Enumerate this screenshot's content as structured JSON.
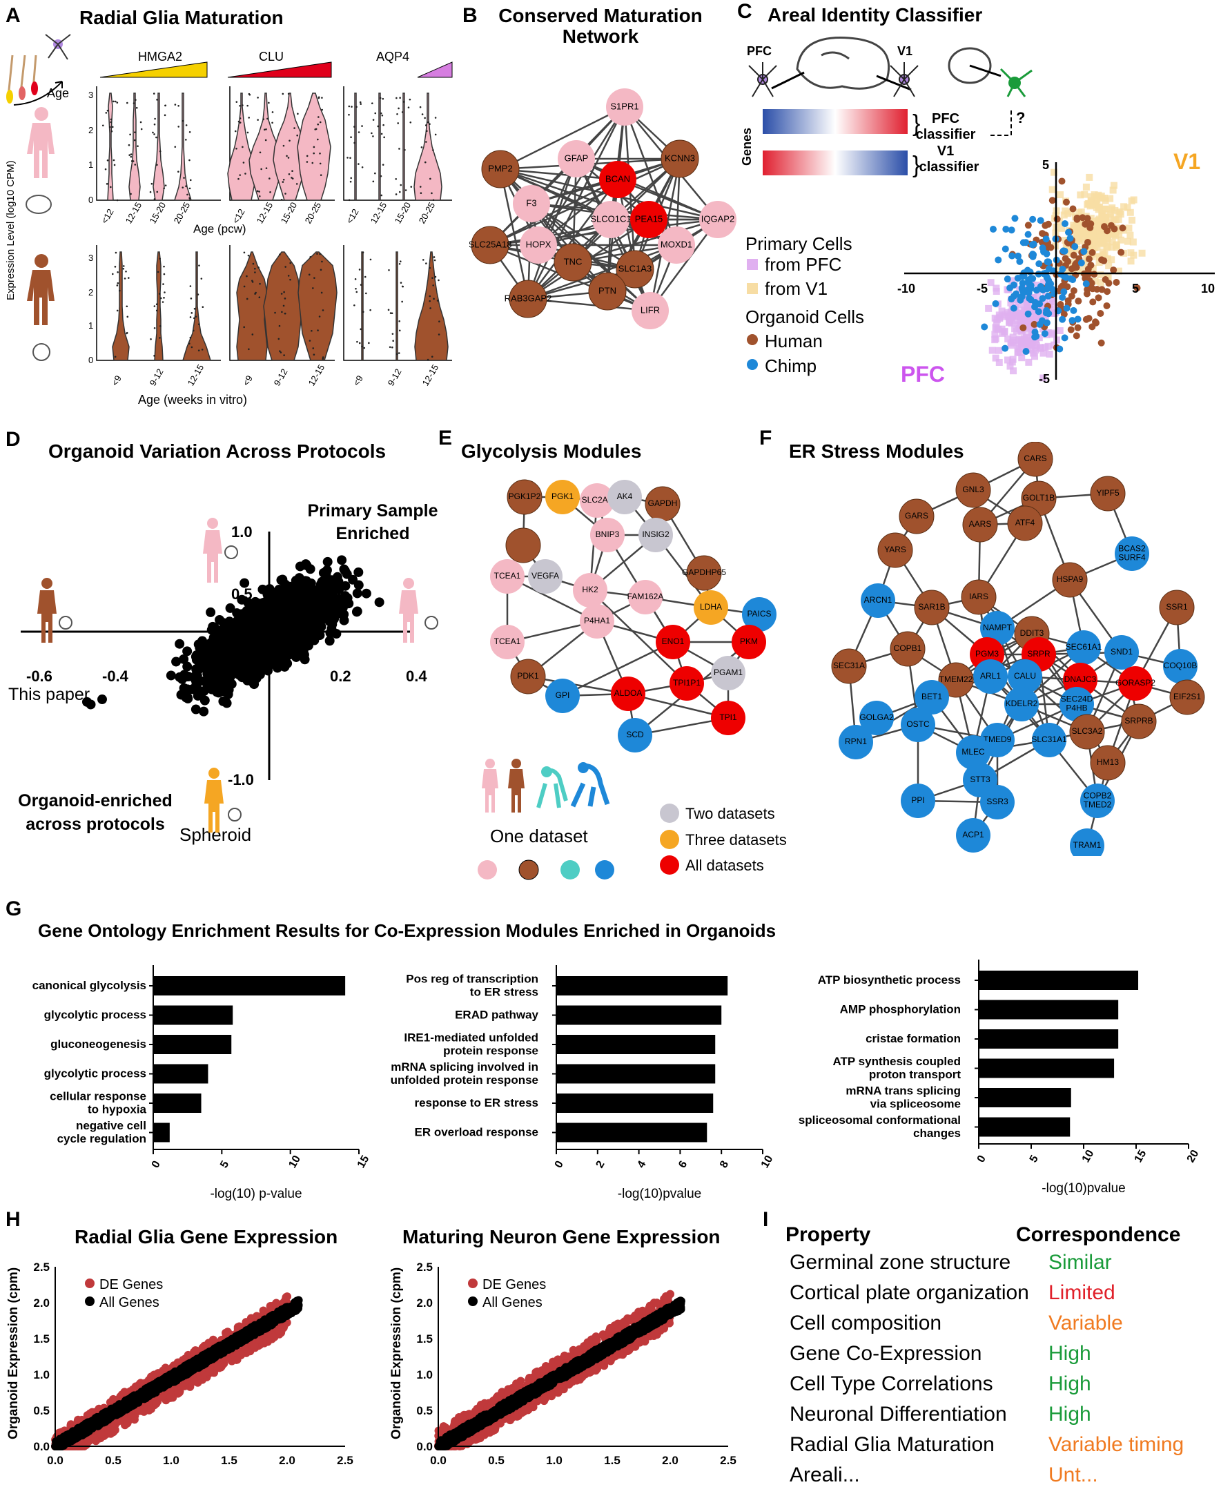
{
  "panels": {
    "A": {
      "letter": "A",
      "title": "Radial Glia Maturation",
      "age_label": "Age",
      "genes": [
        "HMGA2",
        "CLU",
        "AQP4"
      ],
      "ylabel": "Expression Level (log10 CPM)",
      "primary_ages": [
        "<12",
        "12-15",
        "15-20",
        "20-25"
      ],
      "primary_xlabel": "Age (pcw)",
      "organoid_ages": [
        "<9",
        "9-12",
        "12-15"
      ],
      "organoid_xlabel": "Age (weeks in vitro)",
      "yticks": [
        "0",
        "1",
        "2",
        "3"
      ],
      "colors": {
        "primary": "#f4b8c4",
        "organoid": "#a0522d",
        "hmga2": "#f5d000",
        "clu": "#e0001b",
        "aqp4": "#d67ee0"
      }
    },
    "B": {
      "letter": "B",
      "title_line1": "Conserved Maturation",
      "title_line2": "Network",
      "nodes": [
        {
          "label": "S1PR1",
          "color": "pink"
        },
        {
          "label": "GFAP",
          "color": "pink"
        },
        {
          "label": "KCNN3",
          "color": "brown"
        },
        {
          "label": "PMP2",
          "color": "brown"
        },
        {
          "label": "BCAN",
          "color": "red"
        },
        {
          "label": "F3",
          "color": "pink"
        },
        {
          "label": "IQGAP2",
          "color": "pink"
        },
        {
          "label": "SLCO1C1",
          "color": "pink"
        },
        {
          "label": "PEA15",
          "color": "red"
        },
        {
          "label": "SLC25A18",
          "color": "brown"
        },
        {
          "label": "HOPX",
          "color": "pink"
        },
        {
          "label": "MOXD1",
          "color": "pink"
        },
        {
          "label": "TNC",
          "color": "brown"
        },
        {
          "label": "SLC1A3",
          "color": "brown"
        },
        {
          "label": "RAB3GAP2",
          "color": "brown"
        },
        {
          "label": "PTN",
          "color": "brown"
        },
        {
          "label": "LIFR",
          "color": "pink"
        }
      ]
    },
    "C": {
      "letter": "C",
      "title": "Areal Identity Classifier",
      "pfc": "PFC",
      "v1": "V1",
      "genes_label": "Genes",
      "pfc_classifier_1": "PFC",
      "pfc_classifier_2": "classifier",
      "v1_classifier_1": "V1",
      "v1_classifier_2": "classifier",
      "question": "?",
      "legend_primary": "Primary Cells",
      "legend_from_pfc": "from PFC",
      "legend_from_v1": "from V1",
      "legend_organoid": "Organoid Cells",
      "legend_human": "Human",
      "legend_chimp": "Chimp",
      "corner_v1": "V1",
      "corner_pfc": "PFC",
      "xticks": [
        "-10",
        "-5",
        "5",
        "10"
      ],
      "yticks": [
        "5",
        "-5"
      ],
      "colors": {
        "pfc": "#e0b0f0",
        "v1": "#f7dda4",
        "human": "#a0522d",
        "chimp": "#1e88d8",
        "v1_text": "#f5a623",
        "pfc_text": "#cc55ee"
      }
    },
    "D": {
      "letter": "D",
      "title": "Organoid Variation Across Protocols",
      "top_right_1": "Primary Sample",
      "top_right_2": "Enriched",
      "bottom_left_1": "Organoid-enriched",
      "bottom_left_2": "across protocols",
      "this_paper": "This paper",
      "spheroid": "Spheroid",
      "xticks": [
        "-0.6",
        "-0.4",
        "0.2",
        "0.4"
      ],
      "yticks": [
        "1.0",
        "0.5",
        "-1.0"
      ]
    },
    "E": {
      "letter": "E",
      "title": "Glycolysis Modules",
      "nodes": [
        {
          "label": "PGK1P2",
          "color": "brown"
        },
        {
          "label": "PGK1",
          "color": "orange"
        },
        {
          "label": "SLC2A1",
          "color": "pink"
        },
        {
          "label": "AK4",
          "color": "gray"
        },
        {
          "label": "GAPDH",
          "color": "brown"
        },
        {
          "label": "BNIP3",
          "color": "pink"
        },
        {
          "label": "INSIG2",
          "color": "gray"
        },
        {
          "label": "",
          "color": "brown"
        },
        {
          "label": "TCEA1",
          "color": "pink"
        },
        {
          "label": "VEGFA",
          "color": "gray"
        },
        {
          "label": "HK2",
          "color": "pink"
        },
        {
          "label": "GAPDHP65",
          "color": "brown"
        },
        {
          "label": "LDHA",
          "color": "orange"
        },
        {
          "label": "FAM162A",
          "color": "pink"
        },
        {
          "label": "P4HA1",
          "color": "pink"
        },
        {
          "label": "PAICS",
          "color": "blue"
        },
        {
          "label": "TCEA1",
          "color": "pink"
        },
        {
          "label": "ENO1",
          "color": "red"
        },
        {
          "label": "PKM",
          "color": "red"
        },
        {
          "label": "PDK1",
          "color": "brown"
        },
        {
          "label": "TPI1P1",
          "color": "red"
        },
        {
          "label": "PGAM1",
          "color": "gray"
        },
        {
          "label": "GPI",
          "color": "blue"
        },
        {
          "label": "ALDOA",
          "color": "red"
        },
        {
          "label": "TPI1",
          "color": "red"
        },
        {
          "label": "SCD",
          "color": "blue"
        }
      ],
      "legend_one": "One dataset",
      "legend_two": "Two datasets",
      "legend_three": "Three datasets",
      "legend_all": "All datasets"
    },
    "F": {
      "letter": "F",
      "title": "ER Stress Modules",
      "nodes": [
        {
          "label": "CARS",
          "color": "brown"
        },
        {
          "label": "GNL3",
          "color": "brown"
        },
        {
          "label": "GOLT1B",
          "color": "brown"
        },
        {
          "label": "YIPF5",
          "color": "brown"
        },
        {
          "label": "GARS",
          "color": "brown"
        },
        {
          "label": "AARS",
          "color": "brown"
        },
        {
          "label": "ATF4",
          "color": "brown"
        },
        {
          "label": "YARS",
          "color": "brown"
        },
        {
          "label": "BCAS2 SURF4",
          "color": "blue"
        },
        {
          "label": "HSPA9",
          "color": "brown"
        },
        {
          "label": "ARCN1",
          "color": "blue"
        },
        {
          "label": "IARS",
          "color": "brown"
        },
        {
          "label": "SAR1B",
          "color": "brown"
        },
        {
          "label": "SSR1",
          "color": "brown"
        },
        {
          "label": "NAMPT",
          "color": "blue"
        },
        {
          "label": "DDIT3",
          "color": "brown"
        },
        {
          "label": "COPB1",
          "color": "brown"
        },
        {
          "label": "PGM3",
          "color": "red"
        },
        {
          "label": "SRPR",
          "color": "red"
        },
        {
          "label": "SEC61A1",
          "color": "blue"
        },
        {
          "label": "SND1",
          "color": "blue"
        },
        {
          "label": "COQ10B",
          "color": "blue"
        },
        {
          "label": "SEC31A",
          "color": "brown"
        },
        {
          "label": "ARL1",
          "color": "blue"
        },
        {
          "label": "CALU",
          "color": "blue"
        },
        {
          "label": "TMEM22",
          "color": "brown"
        },
        {
          "label": "DNAJC3",
          "color": "red"
        },
        {
          "label": "GORASP2",
          "color": "red"
        },
        {
          "label": "EIF2S1",
          "color": "brown"
        },
        {
          "label": "BET1",
          "color": "blue"
        },
        {
          "label": "KDELR2",
          "color": "blue"
        },
        {
          "label": "SEC24D P4HB",
          "color": "blue"
        },
        {
          "label": "GOLGA2",
          "color": "blue"
        },
        {
          "label": "SRPRB",
          "color": "brown"
        },
        {
          "label": "OSTC",
          "color": "blue"
        },
        {
          "label": "SLC3A2",
          "color": "brown"
        },
        {
          "label": "RPN1",
          "color": "blue"
        },
        {
          "label": "TMED9",
          "color": "blue"
        },
        {
          "label": "SLC31A1",
          "color": "blue"
        },
        {
          "label": "MLEC",
          "color": "blue"
        },
        {
          "label": "HM13",
          "color": "brown"
        },
        {
          "label": "STT3",
          "color": "blue"
        },
        {
          "label": "PPI",
          "color": "blue"
        },
        {
          "label": "SSR3",
          "color": "blue"
        },
        {
          "label": "COPB2 TMED2",
          "color": "blue"
        },
        {
          "label": "ACP1",
          "color": "blue"
        },
        {
          "label": "TRAM1",
          "color": "blue"
        }
      ]
    },
    "G": {
      "letter": "G",
      "title": "Gene Ontology Enrichment Results for Co-Expression Modules Enriched in Organoids"
    },
    "H": {
      "letter": "H",
      "ylabel": "Organoid Expression (cpm)",
      "legend_de": "DE Genes",
      "legend_all": "All Genes",
      "xticks": [
        "0.0",
        "0.5",
        "1.0",
        "1.5",
        "2.0",
        "2.5"
      ],
      "yticks": [
        "0.0",
        "0.5",
        "1.0",
        "1.5",
        "2.0",
        "2.5"
      ],
      "colors": {
        "de": "#c0393b",
        "all": "#000000"
      }
    },
    "I": {
      "letter": "I",
      "header_property": "Property",
      "header_correspondence": "Correspondence",
      "rows": [
        {
          "property": "Germinal zone structure",
          "value": "Similar",
          "color": "#1a9b3a"
        },
        {
          "property": "Cortical plate organization",
          "value": "Limited",
          "color": "#e0202a"
        },
        {
          "property": "Cell composition",
          "value": "Variable",
          "color": "#f07a20"
        },
        {
          "property": "Gene Co-Expression",
          "value": "High",
          "color": "#1a9b3a"
        },
        {
          "property": "Cell Type Correlations",
          "value": "High",
          "color": "#1a9b3a"
        },
        {
          "property": "Neuronal Differentiation",
          "value": "High",
          "color": "#1a9b3a"
        },
        {
          "property": "Radial Glia Maturation",
          "value": "Variable timing",
          "color": "#f07a20"
        },
        {
          "property": "Areali...",
          "value": "Unt...",
          "color": "#f07a20"
        }
      ]
    }
  },
  "chart_data": [
    {
      "type": "bar",
      "panel": "G-left",
      "categories": [
        "canonical glycolysis",
        "glycolytic process",
        "gluconeogenesis",
        "glycolytic process",
        "cellular response to hypoxia",
        "negative cell cycle regulation"
      ],
      "values": [
        14,
        5.8,
        5.7,
        4,
        3.5,
        1.2
      ],
      "xlabel": "-log(10) p-value",
      "xlim": [
        0,
        15
      ],
      "xticks": [
        0,
        5,
        10,
        15
      ]
    },
    {
      "type": "bar",
      "panel": "G-middle",
      "categories": [
        "Pos reg of transcription to ER stress",
        "ERAD pathway",
        "IRE1-mediated unfolded protein response",
        "mRNA splicing involved in unfolded protein response",
        "response to ER stress",
        "ER overload response"
      ],
      "values": [
        8.3,
        8.0,
        7.7,
        7.7,
        7.6,
        7.3
      ],
      "xlabel": "-log(10)pvalue",
      "xlim": [
        0,
        10
      ],
      "xticks": [
        0,
        2,
        4,
        6,
        8,
        10
      ]
    },
    {
      "type": "bar",
      "panel": "G-right",
      "categories": [
        "ATP biosynthetic process",
        "AMP phosphorylation",
        "cristae formation",
        "ATP synthesis coupled proton transport",
        "mRNA trans splicing via spliceosome",
        "spliceosomal conformational changes"
      ],
      "values": [
        15.2,
        13.3,
        13.3,
        12.9,
        8.8,
        8.7
      ],
      "xlabel": "-log(10)pvalue",
      "xlim": [
        0,
        20
      ],
      "xticks": [
        0,
        5,
        10,
        15,
        20
      ]
    },
    {
      "type": "scatter",
      "panel": "H-left",
      "title": "Radial Glia Gene Expression",
      "series": [
        {
          "name": "DE Genes"
        },
        {
          "name": "All Genes"
        }
      ],
      "xlim": [
        0,
        2.5
      ],
      "ylim": [
        0,
        2.5
      ]
    },
    {
      "type": "scatter",
      "panel": "H-right",
      "title": "Maturing Neuron Gene Expression",
      "series": [
        {
          "name": "DE Genes"
        },
        {
          "name": "All Genes"
        }
      ],
      "xlim": [
        0,
        2.5
      ],
      "ylim": [
        0,
        2.5
      ]
    }
  ]
}
